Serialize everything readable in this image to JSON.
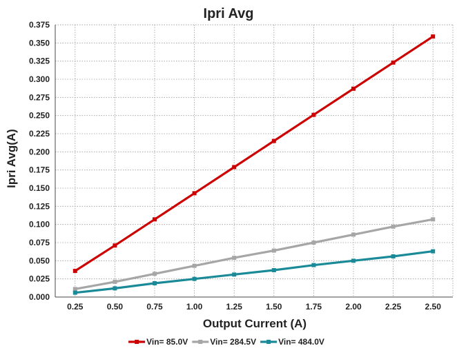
{
  "chart_data": {
    "type": "line",
    "title": "Ipri Avg",
    "xlabel": "Output Current (A)",
    "ylabel": "Ipri Avg(A)",
    "x": [
      0.25,
      0.5,
      0.75,
      1.0,
      1.25,
      1.5,
      1.75,
      2.0,
      2.25,
      2.5
    ],
    "x_tick_labels": [
      "0.25",
      "0.50",
      "0.75",
      "1.00",
      "1.25",
      "1.50",
      "1.75",
      "2.00",
      "2.25",
      "2.50"
    ],
    "y_tick_labels": [
      "0.000",
      "0.025",
      "0.050",
      "0.075",
      "0.100",
      "0.125",
      "0.150",
      "0.175",
      "0.200",
      "0.225",
      "0.250",
      "0.275",
      "0.300",
      "0.325",
      "0.350",
      "0.375"
    ],
    "ylim": [
      0,
      0.375
    ],
    "grid": true,
    "legend_position": "bottom",
    "series": [
      {
        "name": "Vin= 85.0V",
        "color": "#cc0000",
        "values": [
          0.036,
          0.071,
          0.107,
          0.143,
          0.179,
          0.215,
          0.251,
          0.287,
          0.323,
          0.359
        ]
      },
      {
        "name": "Vin= 284.5V",
        "color": "#a6a6a6",
        "values": [
          0.011,
          0.021,
          0.032,
          0.043,
          0.054,
          0.064,
          0.075,
          0.086,
          0.097,
          0.107
        ]
      },
      {
        "name": "Vin= 484.0V",
        "color": "#1a8a99",
        "values": [
          0.006,
          0.012,
          0.019,
          0.025,
          0.031,
          0.037,
          0.044,
          0.05,
          0.056,
          0.063
        ]
      }
    ]
  }
}
